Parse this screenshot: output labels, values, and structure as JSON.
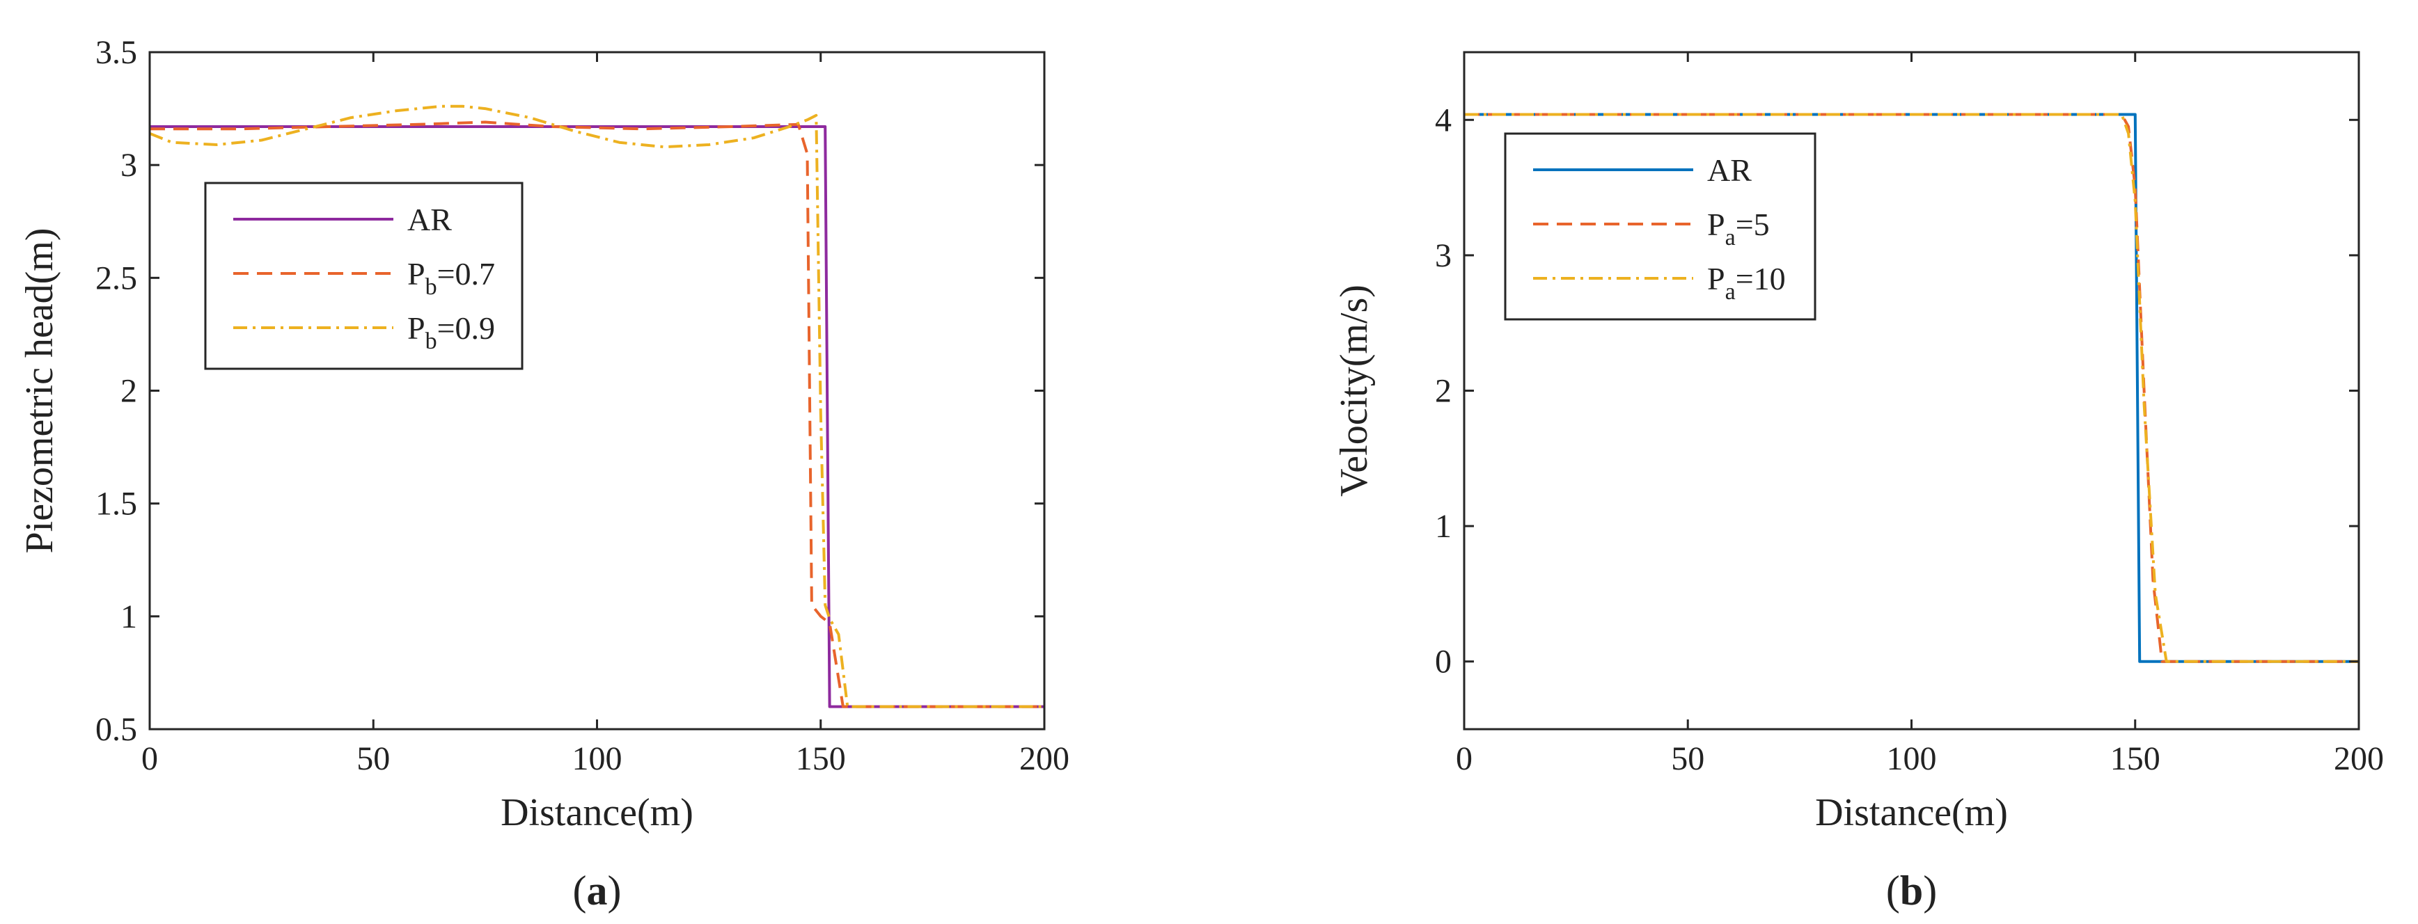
{
  "chart_data": [
    {
      "type": "line",
      "panel_label": "(a)",
      "xlabel": "Distance(m)",
      "ylabel": "Piezometric head(m)",
      "xlim": [
        0,
        200
      ],
      "ylim": [
        0.5,
        3.5
      ],
      "xticks": [
        0,
        50,
        100,
        150,
        200
      ],
      "yticks": [
        0.5,
        1,
        1.5,
        2,
        2.5,
        3,
        3.5
      ],
      "xtick_labels": [
        "0",
        "50",
        "100",
        "150",
        "200"
      ],
      "ytick_labels": [
        "0.5",
        "1",
        "1.5",
        "2",
        "2.5",
        "3",
        "3.5"
      ],
      "grid": false,
      "legend_position": "upper-left",
      "series": [
        {
          "label_main": "AR",
          "label_sub": "",
          "label_suffix": "",
          "color": "#8E2A9E",
          "style": "solid",
          "x": [
            0,
            151,
            152,
            200
          ],
          "y": [
            3.17,
            3.17,
            0.6,
            0.6
          ]
        },
        {
          "label_main": "P",
          "label_sub": "b",
          "label_suffix": "=0.7",
          "color": "#E8642C",
          "style": "dashed",
          "x": [
            0,
            20,
            40,
            60,
            75,
            90,
            110,
            130,
            145,
            147,
            148,
            150,
            152,
            155,
            200
          ],
          "y": [
            3.16,
            3.16,
            3.17,
            3.18,
            3.19,
            3.17,
            3.16,
            3.17,
            3.18,
            3.05,
            1.05,
            1.0,
            0.97,
            0.6,
            0.6
          ]
        },
        {
          "label_main": "P",
          "label_sub": "b",
          "label_suffix": "=0.9",
          "color": "#EDB120",
          "style": "dashdot",
          "x": [
            0,
            5,
            15,
            25,
            35,
            45,
            55,
            65,
            70,
            75,
            85,
            95,
            105,
            115,
            125,
            135,
            143,
            147,
            149,
            150,
            151,
            152,
            154,
            156,
            200
          ],
          "y": [
            3.14,
            3.1,
            3.09,
            3.11,
            3.16,
            3.21,
            3.24,
            3.26,
            3.26,
            3.25,
            3.21,
            3.15,
            3.1,
            3.08,
            3.09,
            3.12,
            3.17,
            3.2,
            3.22,
            1.9,
            1.05,
            0.99,
            0.92,
            0.6,
            0.6
          ]
        }
      ]
    },
    {
      "type": "line",
      "panel_label": "(b)",
      "xlabel": "Distance(m)",
      "ylabel": "Velocity(m/s)",
      "xlim": [
        0,
        200
      ],
      "ylim": [
        -0.5,
        4.5
      ],
      "xticks": [
        0,
        50,
        100,
        150,
        200
      ],
      "yticks": [
        0,
        1,
        2,
        3,
        4
      ],
      "xtick_labels": [
        "0",
        "50",
        "100",
        "150",
        "200"
      ],
      "ytick_labels": [
        "0",
        "1",
        "2",
        "3",
        "4"
      ],
      "grid": false,
      "legend_position": "upper-left",
      "series": [
        {
          "label_main": "AR",
          "label_sub": "",
          "label_suffix": "",
          "color": "#0072BD",
          "style": "solid",
          "x": [
            0,
            150,
            151,
            200
          ],
          "y": [
            4.04,
            4.04,
            0,
            0
          ]
        },
        {
          "label_main": "P",
          "label_sub": "a",
          "label_suffix": "=5",
          "color": "#E8642C",
          "style": "dashed",
          "x": [
            0,
            147,
            148.5,
            150,
            152,
            154,
            156,
            200
          ],
          "y": [
            4.04,
            4.04,
            3.95,
            3.5,
            2.0,
            0.6,
            0,
            0
          ]
        },
        {
          "label_main": "P",
          "label_sub": "a",
          "label_suffix": "=10",
          "color": "#EDB120",
          "style": "dashdot",
          "x": [
            0,
            147,
            148.5,
            150,
            152,
            154.5,
            157,
            200
          ],
          "y": [
            4.04,
            4.04,
            3.9,
            3.4,
            1.9,
            0.5,
            0,
            0
          ]
        }
      ]
    }
  ]
}
